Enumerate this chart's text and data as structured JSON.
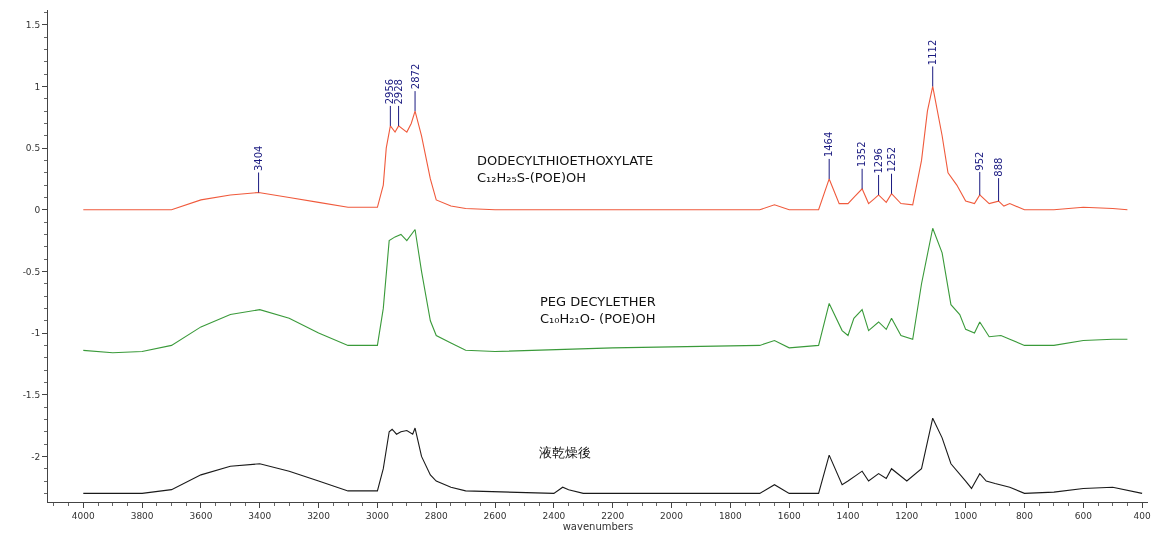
{
  "chart_data": {
    "type": "line",
    "xlabel": "wavenumbers",
    "xlim": [
      4120,
      380
    ],
    "xticks": [
      4000,
      3800,
      3600,
      3400,
      3200,
      3000,
      2800,
      2600,
      2400,
      2200,
      2000,
      1800,
      1600,
      1400,
      1200,
      1000,
      800,
      600,
      400
    ],
    "ylim": [
      -2.37,
      1.62
    ],
    "yticks": [
      1.5,
      1,
      0.5,
      0,
      -0.5,
      -1,
      -1.5,
      -2
    ],
    "legend": false,
    "marker": "none",
    "line_style": "solid",
    "series": [
      {
        "name": "DODECYLTHIOETHOXYLATE\nC₁₂H₂₅S-(POE)OH",
        "color": "#f05a3c",
        "x": [
          4000,
          3700,
          3600,
          3500,
          3404,
          3300,
          3200,
          3100,
          3000,
          2980,
          2970,
          2956,
          2940,
          2928,
          2900,
          2885,
          2872,
          2850,
          2820,
          2800,
          2750,
          2700,
          2600,
          1700,
          1650,
          1600,
          1500,
          1464,
          1430,
          1400,
          1380,
          1352,
          1330,
          1310,
          1296,
          1270,
          1252,
          1220,
          1180,
          1150,
          1130,
          1112,
          1080,
          1060,
          1030,
          1000,
          970,
          952,
          920,
          888,
          870,
          850,
          820,
          800,
          700,
          600,
          500,
          450
        ],
        "values": [
          0,
          0,
          0.08,
          0.12,
          0.14,
          0.1,
          0.06,
          0.02,
          0.02,
          0.2,
          0.5,
          0.68,
          0.63,
          0.68,
          0.63,
          0.7,
          0.8,
          0.6,
          0.25,
          0.08,
          0.03,
          0.01,
          0,
          0,
          0.04,
          0,
          0,
          0.25,
          0.05,
          0.05,
          0.1,
          0.17,
          0.05,
          0.09,
          0.12,
          0.06,
          0.13,
          0.05,
          0.04,
          0.4,
          0.8,
          1.0,
          0.6,
          0.3,
          0.2,
          0.07,
          0.05,
          0.12,
          0.05,
          0.07,
          0.03,
          0.05,
          0.02,
          0,
          0,
          0.02,
          0.01,
          0
        ]
      },
      {
        "name": "PEG DECYLETHER\nC₁₀H₂₁O- (POE)OH",
        "color": "#3a9a3a",
        "x": [
          4000,
          3900,
          3800,
          3700,
          3600,
          3500,
          3400,
          3300,
          3200,
          3100,
          3000,
          2980,
          2960,
          2940,
          2920,
          2900,
          2872,
          2850,
          2820,
          2800,
          2750,
          2700,
          2600,
          2200,
          1700,
          1650,
          1600,
          1500,
          1464,
          1420,
          1400,
          1380,
          1352,
          1330,
          1296,
          1270,
          1252,
          1220,
          1180,
          1150,
          1112,
          1080,
          1050,
          1020,
          1000,
          970,
          952,
          920,
          880,
          850,
          800,
          700,
          600,
          500,
          450
        ],
        "values": [
          -1.14,
          -1.16,
          -1.15,
          -1.1,
          -0.95,
          -0.85,
          -0.81,
          -0.88,
          -1.0,
          -1.1,
          -1.1,
          -0.8,
          -0.25,
          -0.22,
          -0.2,
          -0.25,
          -0.16,
          -0.5,
          -0.9,
          -1.02,
          -1.08,
          -1.14,
          -1.15,
          -1.12,
          -1.1,
          -1.06,
          -1.12,
          -1.1,
          -0.76,
          -0.98,
          -1.02,
          -0.88,
          -0.81,
          -0.98,
          -0.91,
          -0.97,
          -0.88,
          -1.02,
          -1.05,
          -0.6,
          -0.15,
          -0.35,
          -0.77,
          -0.85,
          -0.97,
          -1.0,
          -0.91,
          -1.03,
          -1.02,
          -1.05,
          -1.1,
          -1.1,
          -1.06,
          -1.05,
          -1.05
        ]
      },
      {
        "name": "液乾燥後",
        "color": "#1a1a1a",
        "x": [
          4000,
          3900,
          3800,
          3700,
          3600,
          3500,
          3400,
          3300,
          3200,
          3100,
          3000,
          2980,
          2960,
          2950,
          2935,
          2920,
          2900,
          2880,
          2872,
          2850,
          2820,
          2800,
          2750,
          2700,
          2400,
          2370,
          2350,
          2300,
          1700,
          1650,
          1600,
          1500,
          1464,
          1420,
          1400,
          1370,
          1352,
          1330,
          1296,
          1270,
          1252,
          1200,
          1150,
          1112,
          1080,
          1050,
          1000,
          980,
          952,
          930,
          900,
          850,
          800,
          700,
          600,
          500,
          400
        ],
        "values": [
          -2.3,
          -2.3,
          -2.3,
          -2.27,
          -2.15,
          -2.08,
          -2.06,
          -2.12,
          -2.2,
          -2.28,
          -2.28,
          -2.1,
          -1.8,
          -1.78,
          -1.82,
          -1.8,
          -1.79,
          -1.82,
          -1.77,
          -2.0,
          -2.15,
          -2.2,
          -2.25,
          -2.28,
          -2.3,
          -2.25,
          -2.27,
          -2.3,
          -2.3,
          -2.23,
          -2.3,
          -2.3,
          -1.99,
          -2.23,
          -2.2,
          -2.15,
          -2.12,
          -2.2,
          -2.14,
          -2.18,
          -2.1,
          -2.2,
          -2.1,
          -1.69,
          -1.85,
          -2.06,
          -2.2,
          -2.26,
          -2.14,
          -2.2,
          -2.22,
          -2.25,
          -2.3,
          -2.29,
          -2.26,
          -2.25,
          -2.3
        ]
      }
    ],
    "annotations": [
      {
        "text": "3404",
        "x": 3404,
        "y": 0.14
      },
      {
        "text": "2956",
        "x": 2956,
        "y": 0.68
      },
      {
        "text": "2928",
        "x": 2928,
        "y": 0.68
      },
      {
        "text": "2872",
        "x": 2872,
        "y": 0.8
      },
      {
        "text": "1464",
        "x": 1464,
        "y": 0.25
      },
      {
        "text": "1352",
        "x": 1352,
        "y": 0.17
      },
      {
        "text": "1296",
        "x": 1296,
        "y": 0.12
      },
      {
        "text": "1252",
        "x": 1252,
        "y": 0.13
      },
      {
        "text": "1112",
        "x": 1112,
        "y": 1.0
      },
      {
        "text": "952",
        "x": 952,
        "y": 0.12
      },
      {
        "text": "888",
        "x": 888,
        "y": 0.07
      }
    ]
  }
}
